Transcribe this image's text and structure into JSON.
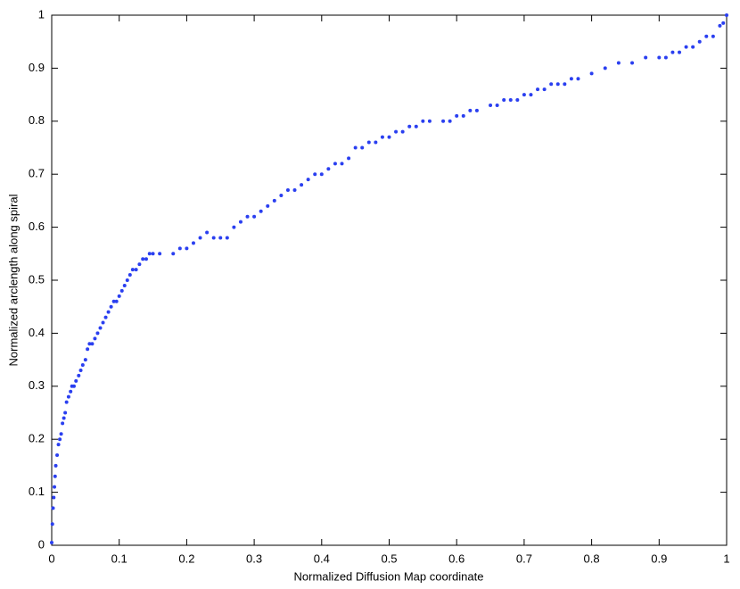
{
  "chart_data": {
    "type": "scatter",
    "x_label": "Normalized Diffusion Map coordinate",
    "y_label": "Normalized arclength along spiral",
    "color": "#2a3ff0",
    "xlim": [
      0,
      1
    ],
    "ylim": [
      0,
      1
    ],
    "xticks": [
      0,
      0.1,
      0.2,
      0.3,
      0.4,
      0.5,
      0.6,
      0.7,
      0.8,
      0.9,
      1
    ],
    "yticks": [
      0,
      0.1,
      0.2,
      0.3,
      0.4,
      0.5,
      0.6,
      0.7,
      0.8,
      0.9,
      1
    ],
    "x": [
      0,
      0.001,
      0.002,
      0.003,
      0.004,
      0.005,
      0.006,
      0.008,
      0.01,
      0.012,
      0.014,
      0.016,
      0.018,
      0.02,
      0.022,
      0.025,
      0.028,
      0.03,
      0.033,
      0.036,
      0.04,
      0.043,
      0.046,
      0.05,
      0.053,
      0.056,
      0.06,
      0.064,
      0.068,
      0.072,
      0.076,
      0.08,
      0.084,
      0.088,
      0.092,
      0.096,
      0.1,
      0.104,
      0.108,
      0.112,
      0.116,
      0.12,
      0.125,
      0.13,
      0.135,
      0.14,
      0.145,
      0.15,
      0.16,
      0.18,
      0.19,
      0.2,
      0.21,
      0.22,
      0.23,
      0.24,
      0.25,
      0.26,
      0.27,
      0.28,
      0.29,
      0.3,
      0.31,
      0.32,
      0.33,
      0.34,
      0.35,
      0.36,
      0.37,
      0.38,
      0.39,
      0.4,
      0.41,
      0.42,
      0.43,
      0.44,
      0.45,
      0.46,
      0.47,
      0.48,
      0.49,
      0.5,
      0.51,
      0.52,
      0.53,
      0.54,
      0.55,
      0.56,
      0.58,
      0.59,
      0.6,
      0.61,
      0.62,
      0.63,
      0.65,
      0.66,
      0.67,
      0.68,
      0.69,
      0.7,
      0.71,
      0.72,
      0.73,
      0.74,
      0.75,
      0.76,
      0.77,
      0.78,
      0.8,
      0.82,
      0.84,
      0.86,
      0.88,
      0.9,
      0.91,
      0.92,
      0.93,
      0.94,
      0.95,
      0.96,
      0.97,
      0.98,
      0.99,
      0.995,
      1
    ],
    "values": [
      0.005,
      0.04,
      0.07,
      0.09,
      0.11,
      0.13,
      0.15,
      0.17,
      0.19,
      0.2,
      0.21,
      0.23,
      0.24,
      0.25,
      0.27,
      0.28,
      0.29,
      0.3,
      0.3,
      0.31,
      0.32,
      0.33,
      0.34,
      0.35,
      0.37,
      0.38,
      0.38,
      0.39,
      0.4,
      0.41,
      0.42,
      0.43,
      0.44,
      0.45,
      0.46,
      0.46,
      0.47,
      0.48,
      0.49,
      0.5,
      0.51,
      0.52,
      0.52,
      0.53,
      0.54,
      0.54,
      0.55,
      0.55,
      0.55,
      0.55,
      0.56,
      0.56,
      0.57,
      0.58,
      0.59,
      0.58,
      0.58,
      0.58,
      0.6,
      0.61,
      0.62,
      0.62,
      0.63,
      0.64,
      0.65,
      0.66,
      0.67,
      0.67,
      0.68,
      0.69,
      0.7,
      0.7,
      0.71,
      0.72,
      0.72,
      0.73,
      0.75,
      0.75,
      0.76,
      0.76,
      0.77,
      0.77,
      0.78,
      0.78,
      0.79,
      0.79,
      0.8,
      0.8,
      0.8,
      0.8,
      0.81,
      0.81,
      0.82,
      0.82,
      0.83,
      0.83,
      0.84,
      0.84,
      0.84,
      0.85,
      0.85,
      0.86,
      0.86,
      0.87,
      0.87,
      0.87,
      0.88,
      0.88,
      0.89,
      0.9,
      0.91,
      0.91,
      0.92,
      0.92,
      0.92,
      0.93,
      0.93,
      0.94,
      0.94,
      0.95,
      0.96,
      0.96,
      0.98,
      0.985,
      1
    ]
  }
}
